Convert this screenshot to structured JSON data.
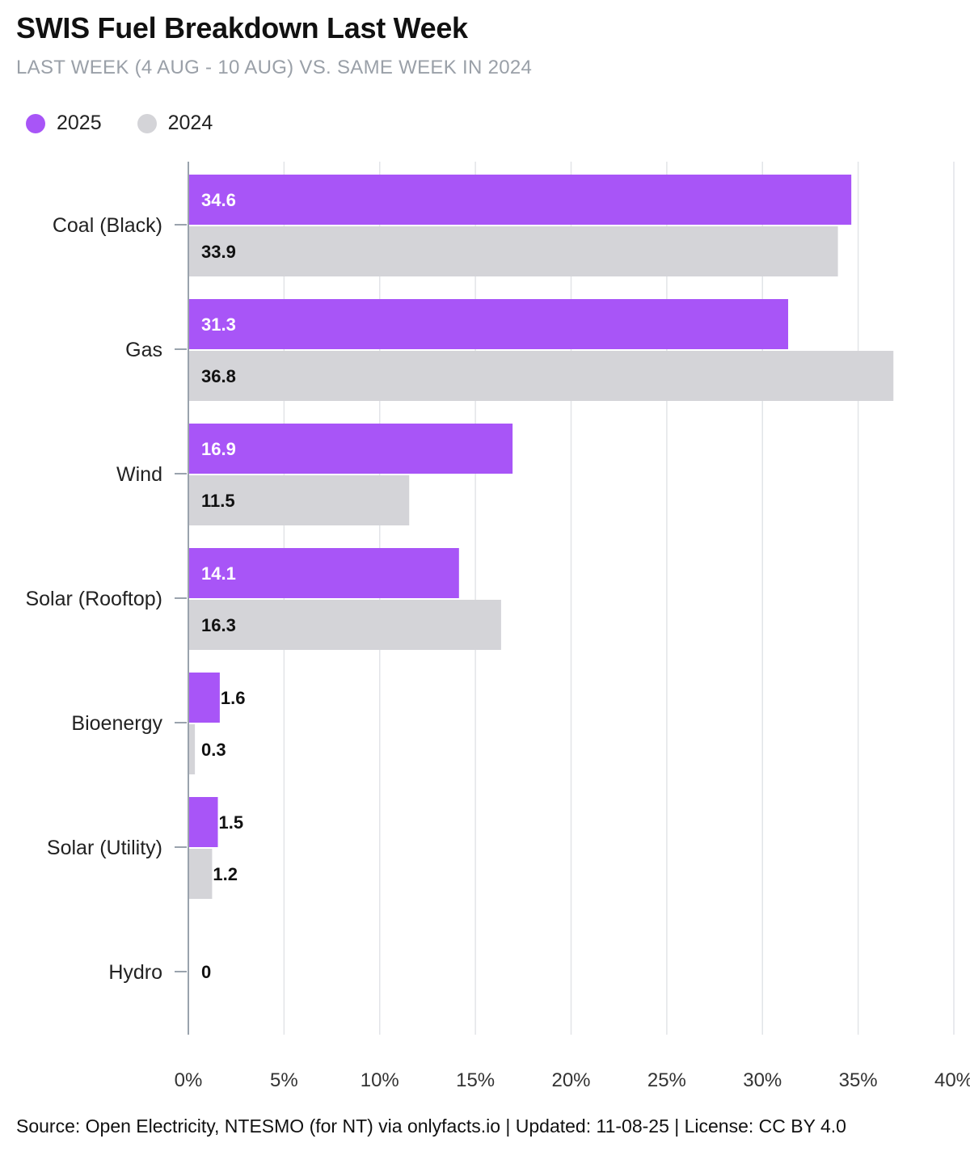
{
  "title": "SWIS Fuel Breakdown Last Week",
  "subtitle": "LAST WEEK (4 AUG - 10 AUG) VS. SAME WEEK IN 2024",
  "source": "Source: Open Electricity, NTESMO (for NT) via onlyfacts.io | Updated: 11-08-25 | License: CC BY 4.0",
  "colors": {
    "s2025": "#a855f7",
    "s2024": "#d4d4d8",
    "grid": "#e2e4e8",
    "axis": "#9aa3ad"
  },
  "chart_data": {
    "type": "bar",
    "orientation": "horizontal",
    "categories": [
      "Coal (Black)",
      "Gas",
      "Wind",
      "Solar (Rooftop)",
      "Bioenergy",
      "Solar (Utility)",
      "Hydro"
    ],
    "series": [
      {
        "name": "2025",
        "values": [
          34.6,
          31.3,
          16.9,
          14.1,
          1.6,
          1.5,
          0
        ],
        "labels": [
          "34.6",
          "31.3",
          "16.9",
          "14.1",
          "1.6",
          "1.5",
          ""
        ]
      },
      {
        "name": "2024",
        "values": [
          33.9,
          36.8,
          11.5,
          16.3,
          0.3,
          1.2,
          0
        ],
        "labels": [
          "33.9",
          "36.8",
          "11.5",
          "16.3",
          "0.3",
          "1.2",
          "0"
        ]
      }
    ],
    "xlim": [
      0,
      40
    ],
    "xticks": [
      0,
      5,
      10,
      15,
      20,
      25,
      30,
      35,
      40
    ],
    "xtick_labels": [
      "0%",
      "5%",
      "10%",
      "15%",
      "20%",
      "25%",
      "30%",
      "35%",
      "40%"
    ],
    "grid": true,
    "legend_position": "top-left"
  }
}
